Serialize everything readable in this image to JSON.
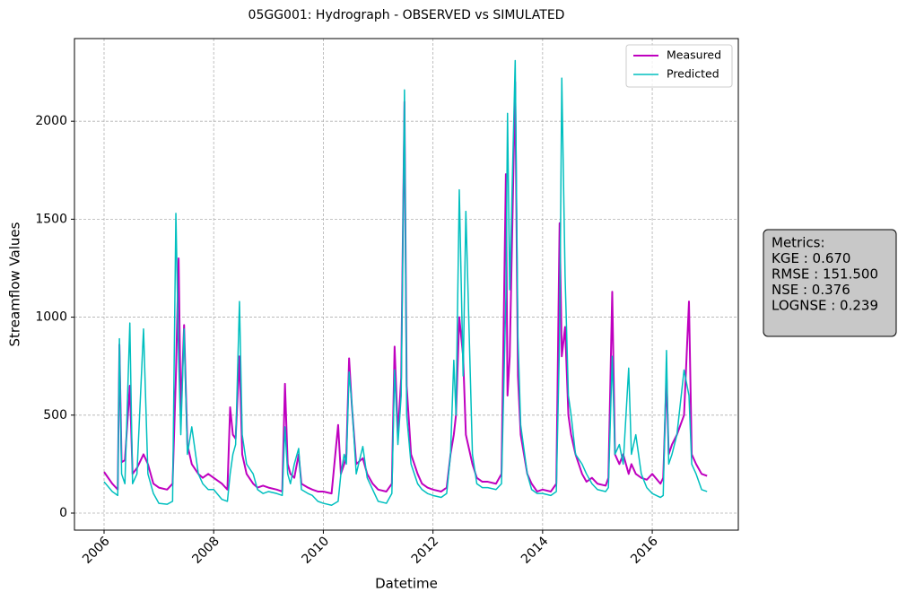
{
  "chart_data": {
    "type": "line",
    "title": "05GG001: Hydrograph - OBSERVED vs SIMULATED",
    "x_label": "Datetime",
    "y_label": "Streamflow Values",
    "x": [
      2006.0,
      2006.15,
      2006.25,
      2006.28,
      2006.32,
      2006.38,
      2006.47,
      2006.52,
      2006.6,
      2006.72,
      2006.8,
      2006.9,
      2007.0,
      2007.15,
      2007.25,
      2007.31,
      2007.36,
      2007.4,
      2007.46,
      2007.52,
      2007.6,
      2007.72,
      2007.8,
      2007.9,
      2008.0,
      2008.15,
      2008.25,
      2008.3,
      2008.35,
      2008.4,
      2008.47,
      2008.52,
      2008.6,
      2008.72,
      2008.8,
      2008.9,
      2009.0,
      2009.15,
      2009.25,
      2009.3,
      2009.35,
      2009.4,
      2009.47,
      2009.55,
      2009.6,
      2009.72,
      2009.8,
      2009.9,
      2010.0,
      2010.15,
      2010.27,
      2010.32,
      2010.38,
      2010.42,
      2010.47,
      2010.52,
      2010.6,
      2010.72,
      2010.8,
      2010.9,
      2011.0,
      2011.15,
      2011.25,
      2011.3,
      2011.36,
      2011.42,
      2011.48,
      2011.52,
      2011.6,
      2011.72,
      2011.8,
      2011.9,
      2012.0,
      2012.15,
      2012.25,
      2012.32,
      2012.38,
      2012.42,
      2012.48,
      2012.55,
      2012.6,
      2012.72,
      2012.8,
      2012.9,
      2013.0,
      2013.15,
      2013.25,
      2013.33,
      2013.36,
      2013.4,
      2013.5,
      2013.55,
      2013.6,
      2013.72,
      2013.8,
      2013.9,
      2014.0,
      2014.15,
      2014.25,
      2014.31,
      2014.35,
      2014.41,
      2014.47,
      2014.52,
      2014.6,
      2014.72,
      2014.8,
      2014.9,
      2015.0,
      2015.15,
      2015.2,
      2015.27,
      2015.32,
      2015.4,
      2015.47,
      2015.57,
      2015.62,
      2015.7,
      2015.8,
      2015.9,
      2016.0,
      2016.15,
      2016.2,
      2016.26,
      2016.3,
      2016.36,
      2016.45,
      2016.58,
      2016.67,
      2016.72,
      2016.8,
      2016.9,
      2017.0
    ],
    "series": [
      {
        "name": "Measured",
        "color": "#bf00bf",
        "width": 2,
        "values": [
          210,
          150,
          120,
          860,
          260,
          270,
          650,
          200,
          230,
          300,
          250,
          150,
          130,
          120,
          150,
          700,
          1300,
          500,
          960,
          350,
          250,
          200,
          180,
          200,
          180,
          150,
          120,
          540,
          400,
          380,
          800,
          300,
          200,
          150,
          130,
          140,
          130,
          120,
          110,
          660,
          250,
          200,
          180,
          300,
          150,
          130,
          120,
          110,
          110,
          100,
          450,
          200,
          250,
          300,
          790,
          550,
          250,
          280,
          200,
          150,
          120,
          110,
          150,
          850,
          400,
          690,
          2100,
          650,
          300,
          200,
          150,
          130,
          120,
          110,
          130,
          300,
          400,
          500,
          1000,
          800,
          400,
          250,
          180,
          160,
          160,
          150,
          200,
          1730,
          600,
          800,
          2200,
          700,
          400,
          200,
          150,
          110,
          120,
          110,
          150,
          1480,
          800,
          950,
          500,
          400,
          300,
          200,
          160,
          180,
          150,
          140,
          180,
          1130,
          300,
          250,
          300,
          200,
          250,
          200,
          180,
          170,
          200,
          150,
          180,
          700,
          300,
          350,
          400,
          500,
          1080,
          300,
          250,
          200,
          190
        ]
      },
      {
        "name": "Predicted",
        "color": "#00bfbf",
        "width": 1.5,
        "values": [
          160,
          110,
          90,
          890,
          200,
          150,
          970,
          150,
          200,
          940,
          200,
          100,
          50,
          45,
          60,
          1530,
          800,
          400,
          940,
          300,
          440,
          200,
          150,
          120,
          120,
          70,
          60,
          200,
          300,
          350,
          1080,
          400,
          250,
          200,
          120,
          100,
          110,
          100,
          90,
          440,
          200,
          150,
          250,
          330,
          120,
          100,
          90,
          60,
          50,
          40,
          60,
          200,
          300,
          250,
          720,
          560,
          200,
          340,
          180,
          120,
          60,
          50,
          100,
          730,
          350,
          600,
          2160,
          500,
          250,
          150,
          120,
          100,
          90,
          80,
          100,
          300,
          780,
          500,
          1650,
          700,
          1540,
          300,
          150,
          130,
          130,
          120,
          150,
          1100,
          2040,
          1140,
          2310,
          900,
          450,
          200,
          120,
          100,
          100,
          90,
          110,
          900,
          2220,
          1210,
          600,
          500,
          300,
          250,
          200,
          150,
          120,
          110,
          130,
          800,
          300,
          350,
          250,
          740,
          300,
          400,
          200,
          130,
          100,
          80,
          90,
          830,
          250,
          300,
          400,
          730,
          600,
          250,
          200,
          120,
          110
        ]
      }
    ],
    "xlim": [
      2005.46,
      2017.57
    ],
    "xticks": [
      2006,
      2008,
      2010,
      2012,
      2014,
      2016
    ],
    "ylim": [
      -87,
      2422
    ],
    "yticks": [
      0,
      500,
      1000,
      1500,
      2000
    ],
    "grid": true,
    "legend": "upper right",
    "annotation": [
      "Metrics:",
      "KGE : 0.670",
      "RMSE : 151.500",
      "NSE : 0.376",
      "LOGNSE : 0.239"
    ]
  }
}
